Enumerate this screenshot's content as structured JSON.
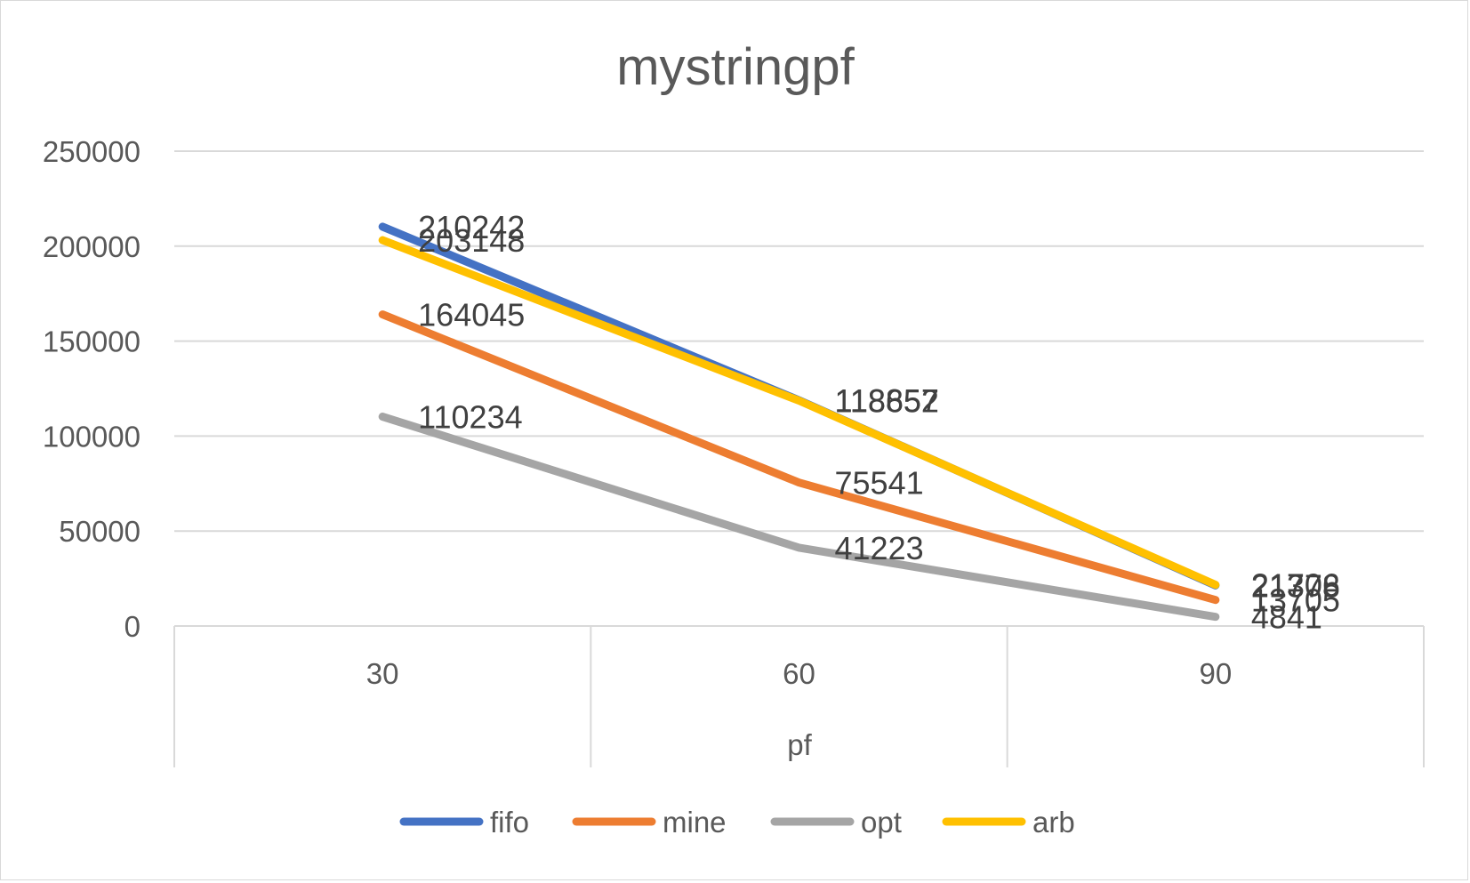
{
  "chart_data": {
    "type": "line",
    "title": "mystringpf",
    "xlabel": "pf",
    "ylabel": "",
    "categories": [
      "30",
      "60",
      "90"
    ],
    "ylim": [
      0,
      250000
    ],
    "yticks": [
      "0",
      "50000",
      "100000",
      "150000",
      "200000",
      "250000"
    ],
    "grid": true,
    "legend_position": "bottom",
    "series": [
      {
        "name": "fifo",
        "color": "#4472C4",
        "values": [
          210242,
          118857,
          21378
        ]
      },
      {
        "name": "mine",
        "color": "#ED7D31",
        "values": [
          164045,
          75541,
          13705
        ]
      },
      {
        "name": "opt",
        "color": "#A5A5A5",
        "values": [
          110234,
          41223,
          4841
        ]
      },
      {
        "name": "arb",
        "color": "#FFC000",
        "values": [
          203148,
          118652,
          21706
        ]
      }
    ],
    "data_labels": [
      [
        "210242",
        "118857",
        "21378"
      ],
      [
        "164045",
        "75541",
        "13705"
      ],
      [
        "110234",
        "41223",
        "4841"
      ],
      [
        "203148",
        "118652",
        "21706"
      ]
    ]
  }
}
